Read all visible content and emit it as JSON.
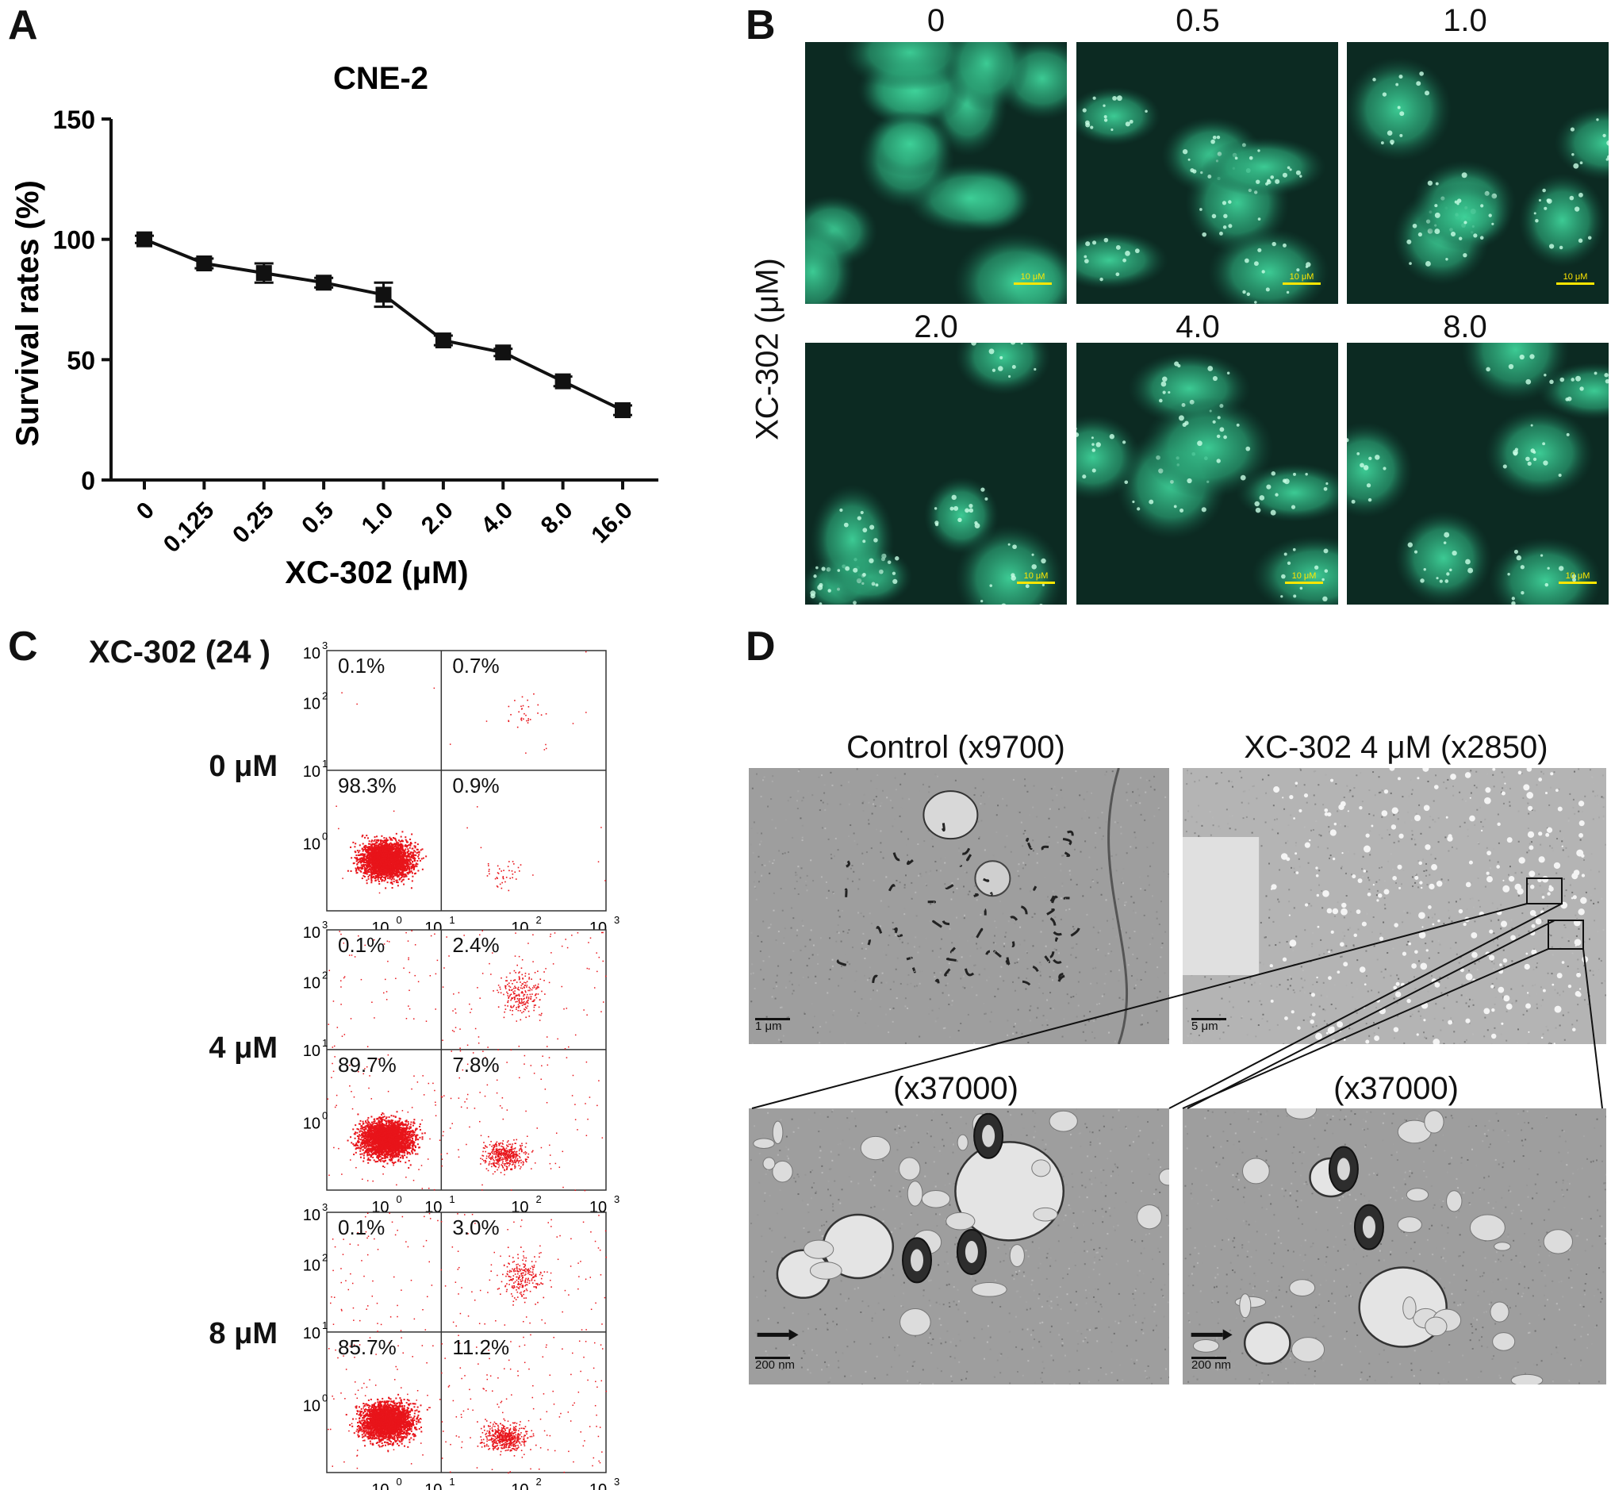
{
  "panels": {
    "a": "A",
    "b": "B",
    "c": "C",
    "d": "D"
  },
  "chart_data": [
    {
      "type": "line",
      "title": "CNE-2",
      "xlabel": "XC-302 (μM)",
      "ylabel": "Survival rates (%)",
      "categories": [
        "0",
        "0.125",
        "0.25",
        "0.5",
        "1.0",
        "2.0",
        "4.0",
        "8.0",
        "16.0"
      ],
      "values": [
        100,
        90,
        86,
        82,
        77,
        58,
        53,
        41,
        29
      ],
      "errors": [
        1.5,
        2,
        4,
        2,
        5,
        2,
        1.5,
        2,
        2
      ],
      "ylim": [
        0,
        150
      ],
      "yticks": [
        "0",
        "50",
        "100",
        "150"
      ],
      "grid": false,
      "marker": "square"
    },
    {
      "type": "scatter",
      "panel_label": "XC-302 (24 )",
      "plots": [
        {
          "dose": "0 μM",
          "quadrants": {
            "ul": "0.1%",
            "ur": "0.7%",
            "ll": "98.3%",
            "lr": "0.9%"
          }
        },
        {
          "dose": "4 μM",
          "quadrants": {
            "ul": "0.1%",
            "ur": "2.4%",
            "ll": "89.7%",
            "lr": "7.8%"
          }
        },
        {
          "dose": "8 μM",
          "quadrants": {
            "ul": "0.1%",
            "ur": "3.0%",
            "ll": "85.7%",
            "lr": "11.2%"
          }
        }
      ],
      "axis_ticks": [
        "10",
        "0",
        "1",
        "2",
        "3"
      ],
      "point_color": "#e8141a"
    }
  ],
  "fluorescence": {
    "axis_label": "XC-302 (μM)",
    "scale_label": "10 μM",
    "images": [
      {
        "label": "0"
      },
      {
        "label": "0.5"
      },
      {
        "label": "1.0"
      },
      {
        "label": "2.0"
      },
      {
        "label": "4.0"
      },
      {
        "label": "8.0"
      }
    ]
  },
  "tem": {
    "images": [
      {
        "label": "Control (x9700)",
        "scale": "1  μm"
      },
      {
        "label": "XC-302 4 μM (x2850)",
        "scale": "5  μm"
      },
      {
        "label": "(x37000)",
        "scale": "200  nm"
      },
      {
        "label": "(x37000)",
        "scale": "200  nm"
      }
    ]
  },
  "colors": {
    "fluor_bg": "#0c2a22",
    "fluor_cell": "#3fd39a",
    "scatter": "#e8141a",
    "tem_bg": "#a9a9a9"
  }
}
